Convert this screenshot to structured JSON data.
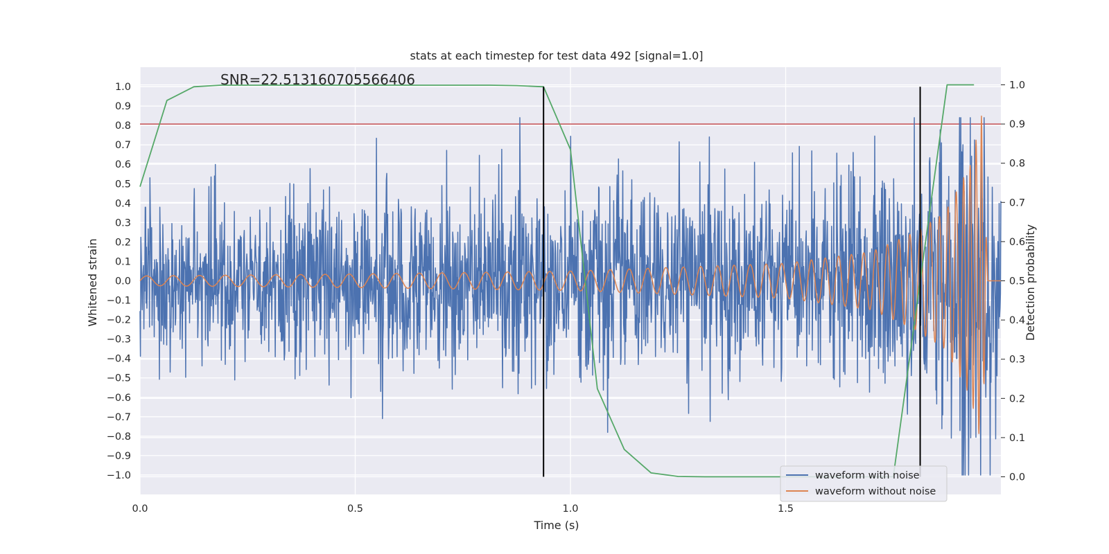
{
  "chart_data": {
    "type": "line",
    "title": "stats at each timestep for test data 492 [signal=1.0]",
    "annotation": "SNR=22.513160705566406",
    "xlabel": "Time (s)",
    "ylabel": "Whitened strain",
    "y2label": "Detection probability",
    "xlim": [
      0.0,
      2.0
    ],
    "ylim": [
      -1.1,
      1.1
    ],
    "y2lim": [
      -0.045,
      1.045
    ],
    "x_ticks": [
      "0.0",
      "0.5",
      "1.0",
      "1.5"
    ],
    "x_tick_values": [
      0.0,
      0.5,
      1.0,
      1.5
    ],
    "y_ticks": [
      "1.0",
      "0.9",
      "0.8",
      "0.7",
      "0.6",
      "0.5",
      "0.4",
      "0.3",
      "0.2",
      "0.1",
      "0.0",
      "−0.1",
      "−0.2",
      "−0.3",
      "−0.4",
      "−0.5",
      "−0.6",
      "−0.7",
      "−0.8",
      "−0.9",
      "−1.0"
    ],
    "y_tick_values": [
      1.0,
      0.9,
      0.8,
      0.7,
      0.6,
      0.5,
      0.4,
      0.3,
      0.2,
      0.1,
      0.0,
      -0.1,
      -0.2,
      -0.3,
      -0.4,
      -0.5,
      -0.6,
      -0.7,
      -0.8,
      -0.9,
      -1.0
    ],
    "y2_ticks": [
      "1.0",
      "0.9",
      "0.8",
      "0.7",
      "0.6",
      "0.5",
      "0.4",
      "0.3",
      "0.2",
      "0.1",
      "0.0"
    ],
    "y2_tick_values": [
      1.0,
      0.9,
      0.8,
      0.7,
      0.6,
      0.5,
      0.4,
      0.3,
      0.2,
      0.1,
      0.0
    ],
    "grid": true,
    "legend_position": "lower-right",
    "series": [
      {
        "name": "waveform with noise",
        "color": "#4c72b0",
        "axis": "left",
        "kind": "noise",
        "x_range": [
          0.0,
          2.0
        ],
        "amplitude_envelope": [
          [
            0.0,
            0.2
          ],
          [
            1.6,
            0.25
          ],
          [
            1.85,
            0.35
          ],
          [
            1.95,
            0.6
          ],
          [
            2.0,
            0.2
          ]
        ],
        "extreme_y_range": [
          -1.0,
          0.84
        ]
      },
      {
        "name": "waveform without noise",
        "color": "#dd8452",
        "axis": "left",
        "kind": "chirp",
        "x_range": [
          0.0,
          1.97
        ],
        "amplitude_points": [
          [
            0.0,
            0.025
          ],
          [
            0.5,
            0.035
          ],
          [
            1.0,
            0.05
          ],
          [
            1.5,
            0.09
          ],
          [
            1.7,
            0.15
          ],
          [
            1.8,
            0.25
          ],
          [
            1.87,
            0.35
          ],
          [
            1.93,
            0.6
          ],
          [
            1.955,
            0.85
          ],
          [
            1.965,
            0.3
          ],
          [
            1.97,
            0.0
          ]
        ],
        "frequency_points_hz": [
          [
            0.0,
            16
          ],
          [
            0.5,
            18
          ],
          [
            1.0,
            21
          ],
          [
            1.5,
            28
          ],
          [
            1.8,
            40
          ],
          [
            1.9,
            55
          ],
          [
            1.97,
            90
          ]
        ]
      },
      {
        "name": "",
        "color": "#55a868",
        "axis": "right",
        "kind": "line",
        "x": [
          0.0,
          0.0625,
          0.125,
          0.1875,
          0.25,
          0.3125,
          0.375,
          0.4375,
          0.5,
          0.5625,
          0.625,
          0.6875,
          0.75,
          0.8125,
          0.875,
          0.9375,
          1.0,
          1.0625,
          1.125,
          1.1875,
          1.25,
          1.3125,
          1.375,
          1.4375,
          1.5,
          1.5625,
          1.625,
          1.6875,
          1.75,
          1.8125,
          1.875,
          1.9375
        ],
        "y": [
          0.74,
          0.96,
          0.995,
          0.999,
          0.999,
          0.999,
          0.999,
          0.999,
          0.999,
          0.999,
          0.999,
          0.999,
          0.999,
          0.999,
          0.998,
          0.995,
          0.835,
          0.225,
          0.07,
          0.01,
          0.001,
          0.0,
          0.0,
          0.0,
          0.0,
          0.0,
          0.0,
          0.0,
          0.0,
          0.5,
          1.0,
          1.0
        ]
      }
    ],
    "threshold_line": {
      "y2": 0.9,
      "color": "#c44e52"
    },
    "vertical_markers": [
      {
        "x": 0.9375,
        "y2_range": [
          0.0,
          0.995
        ],
        "color": "#000000"
      },
      {
        "x": 1.8125,
        "y2_range": [
          0.0,
          0.995
        ],
        "color": "#000000"
      }
    ],
    "legend": [
      {
        "label": "waveform with noise",
        "color": "#4c72b0"
      },
      {
        "label": "waveform without noise",
        "color": "#dd8452"
      }
    ]
  }
}
